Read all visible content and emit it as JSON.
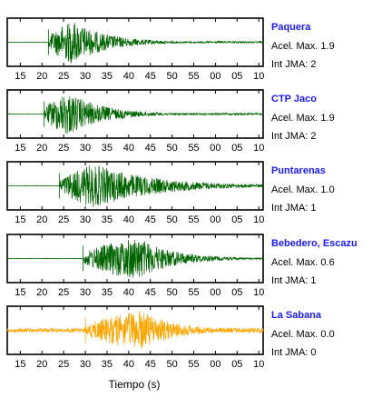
{
  "figure": {
    "xlabel": "Tiempo (s)"
  },
  "chart_data": [
    {
      "type": "line",
      "station": "Paquera",
      "accel_text": "Acel. Max. 1.9",
      "jma_text": "Int JMA: 2",
      "onset_s": 21.5,
      "peak_s": 27,
      "trace_color": "#006400",
      "x_ticks": [
        "15",
        "20",
        "25",
        "30",
        "35",
        "40",
        "45",
        "50",
        "55",
        "00",
        "05",
        "10"
      ]
    },
    {
      "type": "line",
      "station": "CTP Jaco",
      "accel_text": "Acel. Max. 1.9",
      "jma_text": "Int JMA: 2",
      "onset_s": 20.5,
      "peak_s": 26,
      "trace_color": "#006400",
      "x_ticks": [
        "15",
        "20",
        "25",
        "30",
        "35",
        "40",
        "45",
        "50",
        "55",
        "00",
        "05",
        "10"
      ]
    },
    {
      "type": "line",
      "station": "Puntarenas",
      "accel_text": "Acel. Max. 1.0",
      "jma_text": "Int JMA: 1",
      "onset_s": 24,
      "peak_s": 32,
      "trace_color": "#006400",
      "x_ticks": [
        "15",
        "20",
        "25",
        "30",
        "35",
        "40",
        "45",
        "50",
        "55",
        "00",
        "05",
        "10"
      ]
    },
    {
      "type": "line",
      "station": "Bebedero, Escazu",
      "accel_text": "Acel. Max. 0.6",
      "jma_text": "Int JMA: 1",
      "onset_s": 29.5,
      "peak_s": 42,
      "trace_color": "#006400",
      "x_ticks": [
        "15",
        "20",
        "25",
        "30",
        "35",
        "40",
        "45",
        "50",
        "55",
        "00",
        "05",
        "10"
      ]
    },
    {
      "type": "line",
      "station": "La Sabana",
      "accel_text": "Acel. Max. 0.0",
      "jma_text": "Int JMA: 0",
      "onset_s": 30,
      "peak_s": 43,
      "trace_color": "#ffa500",
      "x_ticks": [
        "15",
        "20",
        "25",
        "30",
        "35",
        "40",
        "45",
        "50",
        "55",
        "00",
        "05",
        "10"
      ]
    }
  ]
}
